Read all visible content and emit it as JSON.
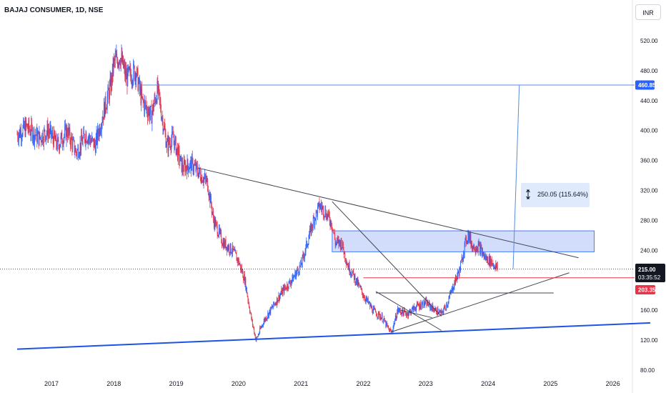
{
  "header": {
    "symbol_title": "BAJAJ CONSUMER, 1D, NSE",
    "currency": "INR"
  },
  "colors": {
    "up": "#2962ff",
    "down": "#e8354a",
    "trendline": "#434651",
    "blue_line": "#1e53e5",
    "zone_fill": "#c9d8fb",
    "zone_stroke": "#2962ff",
    "target_line": "#5b8bd9",
    "support_red": "#e8354a",
    "price_tag": "#131722",
    "support_tag": "#e8354a",
    "target_tag": "#2962ff"
  },
  "chart_data": {
    "type": "candlestick",
    "x_axis": {
      "range": [
        2016.45,
        2026.5
      ],
      "ticks": [
        "2017",
        "2018",
        "2019",
        "2020",
        "2021",
        "2022",
        "2023",
        "2024",
        "2025",
        "2026"
      ]
    },
    "y_axis": {
      "range": [
        72,
        545
      ],
      "ticks": [
        "520.00",
        "480.00",
        "440.00",
        "400.00",
        "360.00",
        "320.00",
        "280.00",
        "240.00",
        "200.00",
        "160.00",
        "120.00",
        "80.00"
      ]
    },
    "price_path": [
      [
        2016.45,
        395
      ],
      [
        2016.6,
        405
      ],
      [
        2016.8,
        390
      ],
      [
        2016.95,
        400
      ],
      [
        2017.1,
        380
      ],
      [
        2017.25,
        400
      ],
      [
        2017.4,
        370
      ],
      [
        2017.55,
        395
      ],
      [
        2017.7,
        380
      ],
      [
        2017.85,
        430
      ],
      [
        2017.95,
        460
      ],
      [
        2018.0,
        490
      ],
      [
        2018.1,
        500
      ],
      [
        2018.2,
        470
      ],
      [
        2018.35,
        480
      ],
      [
        2018.45,
        440
      ],
      [
        2018.6,
        420
      ],
      [
        2018.7,
        455
      ],
      [
        2018.85,
        380
      ],
      [
        2018.95,
        390
      ],
      [
        2019.1,
        350
      ],
      [
        2019.25,
        355
      ],
      [
        2019.4,
        340
      ],
      [
        2019.5,
        330
      ],
      [
        2019.6,
        280
      ],
      [
        2019.75,
        250
      ],
      [
        2019.9,
        240
      ],
      [
        2020.0,
        225
      ],
      [
        2020.1,
        200
      ],
      [
        2020.2,
        150
      ],
      [
        2020.28,
        120
      ],
      [
        2020.4,
        145
      ],
      [
        2020.55,
        165
      ],
      [
        2020.7,
        185
      ],
      [
        2020.85,
        200
      ],
      [
        2021.0,
        220
      ],
      [
        2021.1,
        250
      ],
      [
        2021.2,
        280
      ],
      [
        2021.3,
        300
      ],
      [
        2021.4,
        290
      ],
      [
        2021.5,
        275
      ],
      [
        2021.55,
        250
      ],
      [
        2021.65,
        250
      ],
      [
        2021.75,
        220
      ],
      [
        2021.85,
        205
      ],
      [
        2022.0,
        180
      ],
      [
        2022.15,
        160
      ],
      [
        2022.3,
        150
      ],
      [
        2022.4,
        135
      ],
      [
        2022.45,
        130
      ],
      [
        2022.55,
        160
      ],
      [
        2022.7,
        155
      ],
      [
        2022.85,
        165
      ],
      [
        2023.0,
        170
      ],
      [
        2023.15,
        160
      ],
      [
        2023.25,
        155
      ],
      [
        2023.35,
        170
      ],
      [
        2023.45,
        195
      ],
      [
        2023.55,
        215
      ],
      [
        2023.62,
        245
      ],
      [
        2023.68,
        262
      ],
      [
        2023.75,
        245
      ],
      [
        2023.85,
        245
      ],
      [
        2023.95,
        230
      ],
      [
        2024.05,
        225
      ],
      [
        2024.1,
        220
      ],
      [
        2024.15,
        215
      ]
    ],
    "annotations": {
      "current_price": "215.00",
      "countdown": "03:35:52",
      "target_price": "460.85",
      "support_price": "203.35",
      "measure_label": "250.05 (115.64%)",
      "target_line_value": 460.85,
      "support_line_value": 203.35,
      "current_price_value": 215.0,
      "resistance_zone": {
        "x": [
          2021.5,
          2025.7
        ],
        "y": [
          238,
          266
        ]
      },
      "trendlines": [
        {
          "name": "descending-trendline",
          "from": [
            2019.35,
            350
          ],
          "to": [
            2025.45,
            230
          ],
          "color": "trendline"
        },
        {
          "name": "long-term-support-line",
          "from": [
            2016.45,
            108
          ],
          "to": [
            2026.6,
            143
          ],
          "color": "blue_line"
        },
        {
          "name": "rising-support-line",
          "from": [
            2022.45,
            131
          ],
          "to": [
            2025.3,
            210
          ],
          "color": "trendline"
        },
        {
          "name": "steep-down-line",
          "from": [
            2021.5,
            305
          ],
          "to": [
            2023.25,
            152
          ],
          "color": "trendline"
        },
        {
          "name": "wedge-lower-line",
          "from": [
            2022.2,
            185
          ],
          "to": [
            2023.25,
            133
          ],
          "color": "trendline"
        },
        {
          "name": "wedge-upper-line",
          "from": [
            2022.6,
            160
          ],
          "to": [
            2023.1,
            150
          ],
          "color": "trendline"
        },
        {
          "name": "breakout-level-line",
          "from": [
            2022.2,
            183
          ],
          "to": [
            2025.05,
            183
          ],
          "color": "trendline"
        },
        {
          "name": "projection-line",
          "from": [
            2024.4,
            215
          ],
          "to": [
            2024.5,
            460.85
          ],
          "color": "target_line"
        }
      ]
    }
  }
}
